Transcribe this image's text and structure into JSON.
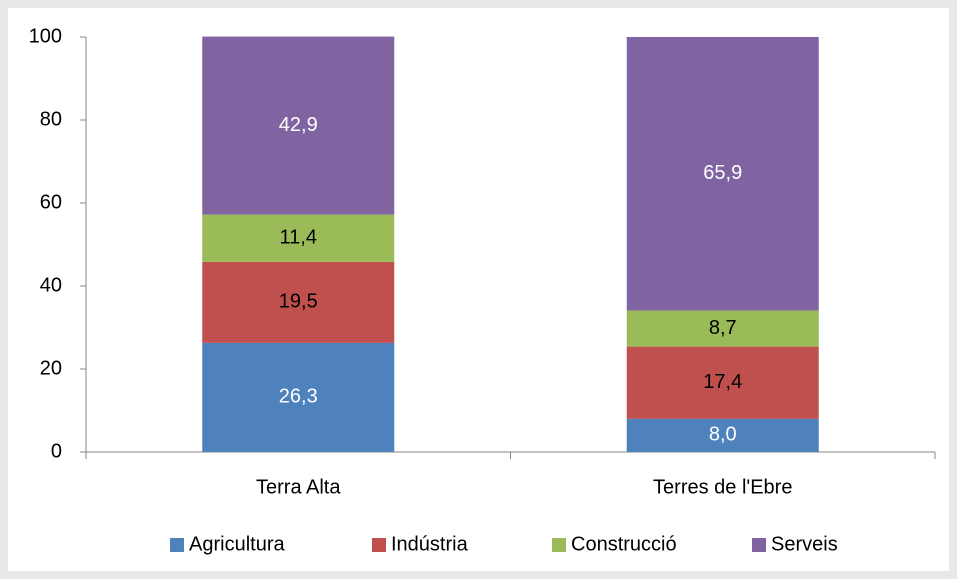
{
  "chart_data": {
    "type": "stacked_bar",
    "categories": [
      "Terra Alta",
      "Terres de l'Ebre"
    ],
    "series": [
      {
        "name": "Agricultura",
        "color": "#4f81bd",
        "label_color": "#ffffff",
        "values": [
          26.3,
          8.0
        ],
        "value_labels": [
          "26,3",
          "8,0"
        ]
      },
      {
        "name": "Indústria",
        "color": "#c0504d",
        "label_color": "#000000",
        "values": [
          19.5,
          17.4
        ],
        "value_labels": [
          "19,5",
          "17,4"
        ]
      },
      {
        "name": "Construcció",
        "color": "#9bbb59",
        "label_color": "#000000",
        "values": [
          11.4,
          8.7
        ],
        "value_labels": [
          "11,4",
          "8,7"
        ]
      },
      {
        "name": "Serveis",
        "color": "#8064a2",
        "label_color": "#ffffff",
        "values": [
          42.9,
          65.9
        ],
        "value_labels": [
          "42,9",
          "65,9"
        ]
      }
    ],
    "ylim": [
      0,
      100
    ],
    "yticks": [
      0,
      20,
      40,
      60,
      80,
      100
    ],
    "grid": false,
    "legend": "bottom"
  }
}
